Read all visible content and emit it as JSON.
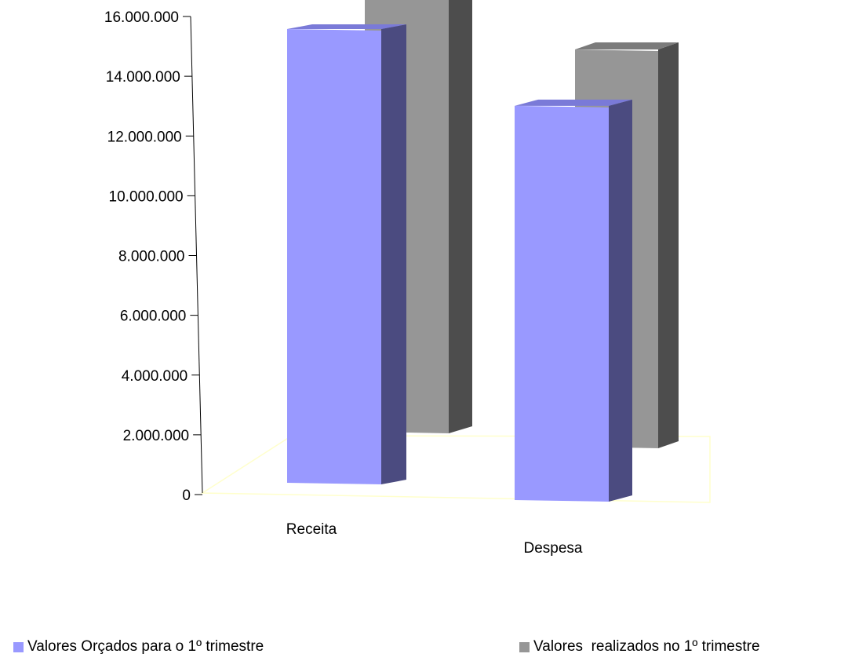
{
  "chart_data": {
    "type": "bar",
    "variant": "3d-clustered-column",
    "categories": [
      "Receita",
      "Despesa"
    ],
    "series": [
      {
        "name": "Valores Orçados para o 1º trimestre",
        "values": [
          15300000,
          13300000
        ],
        "color": "#9999ff",
        "side_color": "#4b4b80",
        "top_color": "#7a7ad8"
      },
      {
        "name": "Valores  realizados no 1º trimestre",
        "values": [
          15500000,
          13400000
        ],
        "color": "#969696",
        "side_color": "#4d4d4d",
        "top_color": "#7b7b7b"
      }
    ],
    "title": "",
    "xlabel": "",
    "ylabel": "",
    "ylim": [
      0,
      16000000
    ],
    "y_ticks": [
      "0",
      "2.000.000",
      "4.000.000",
      "6.000.000",
      "8.000.000",
      "10.000.000",
      "12.000.000",
      "14.000.000",
      "16.000.000"
    ],
    "grid": false,
    "legend_position": "bottom",
    "floor_color": "#ffffcc"
  }
}
